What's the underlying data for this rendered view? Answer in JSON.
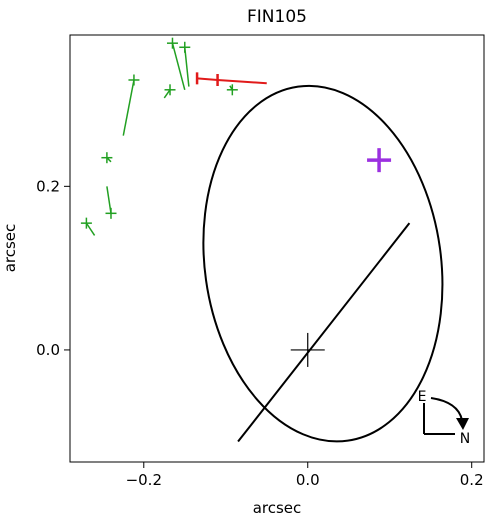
{
  "chart_data": {
    "type": "scatter",
    "title": "FIN105",
    "xlabel": "arcsec",
    "ylabel": "arcsec",
    "xlim": [
      -0.29,
      0.215
    ],
    "ylim": [
      -0.137,
      0.385
    ],
    "xticks": [
      -0.2,
      0.0,
      0.2
    ],
    "xtick_labels": [
      "−0.2",
      "0.0",
      "0.2"
    ],
    "yticks": [
      0.0,
      0.2
    ],
    "ytick_labels": [
      "0.0",
      "0.2"
    ],
    "grid": false,
    "orbit_ellipse": {
      "cx": 0.0185,
      "cy": 0.1055,
      "rx": 0.144,
      "ry": 0.2185,
      "rotation_deg": -8
    },
    "line_of_nodes": [
      [
        -0.085,
        -0.112
      ],
      [
        0.124,
        0.155
      ]
    ],
    "primary_star": [
      0.0,
      0.0
    ],
    "measurements": [
      {
        "obs": [
          -0.27,
          0.155
        ],
        "model": [
          -0.26,
          0.14
        ]
      },
      {
        "obs": [
          -0.24,
          0.167
        ],
        "model": [
          -0.245,
          0.2
        ]
      },
      {
        "obs": [
          -0.245,
          0.235
        ],
        "model": [
          -0.24,
          0.23
        ]
      },
      {
        "obs": [
          -0.212,
          0.33
        ],
        "model": [
          -0.225,
          0.262
        ]
      },
      {
        "obs": [
          -0.168,
          0.318
        ],
        "model": [
          -0.175,
          0.308
        ]
      },
      {
        "obs": [
          -0.165,
          0.375
        ],
        "model": [
          -0.15,
          0.318
        ]
      },
      {
        "obs": [
          -0.15,
          0.37
        ],
        "model": [
          -0.145,
          0.322
        ]
      },
      {
        "obs": [
          -0.092,
          0.318
        ],
        "model": [
          -0.095,
          0.323
        ]
      }
    ],
    "recent_track": [
      [
        -0.135,
        0.332
      ],
      [
        -0.11,
        0.33
      ],
      [
        -0.08,
        0.328
      ],
      [
        -0.05,
        0.326
      ]
    ],
    "predicted_position": [
      0.087,
      0.232
    ],
    "compass": {
      "east": "E",
      "north": "N"
    },
    "colors": {
      "orbit": "#000000",
      "measurements": "#22a022",
      "recent": "#e11a1a",
      "predicted": "#9b30e0"
    }
  }
}
